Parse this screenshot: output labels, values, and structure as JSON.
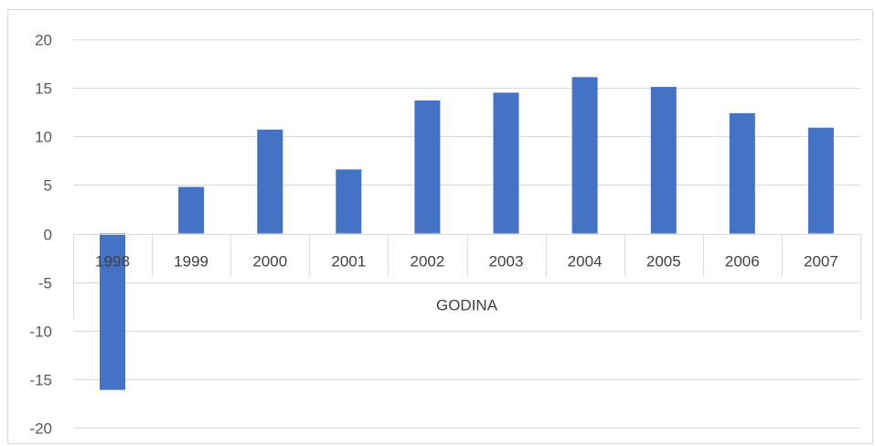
{
  "chart_data": {
    "type": "bar",
    "title": "",
    "xlabel": "GODINA",
    "ylabel": "",
    "categories": [
      "1998",
      "1999",
      "2000",
      "2001",
      "2002",
      "2003",
      "2004",
      "2005",
      "2006",
      "2007"
    ],
    "series": [
      {
        "values": [
          -16.1,
          4.8,
          10.7,
          6.6,
          13.7,
          14.5,
          16.1,
          15.1,
          12.4,
          10.9
        ]
      }
    ],
    "ylim": [
      -20,
      20
    ],
    "yticks": [
      20,
      15,
      10,
      5,
      0,
      -5,
      -10,
      -15,
      -20
    ],
    "grid": true,
    "legend": "none",
    "colors": {
      "bar": "#4472C4",
      "grid": "#D9D9D9",
      "border": "#D9D9D9"
    }
  }
}
